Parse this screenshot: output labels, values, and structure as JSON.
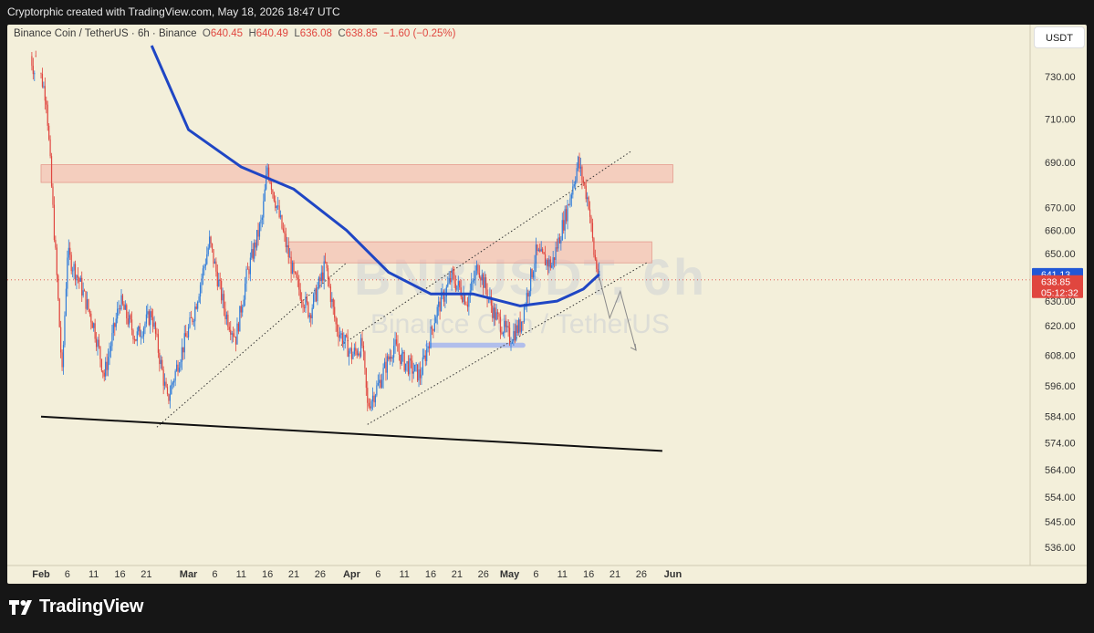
{
  "header": {
    "created_text": "Cryptorphic created with TradingView.com, May 18, 2026 18:47 UTC"
  },
  "legend": {
    "symbol": "Binance Coin / TetherUS · 6h · Binance",
    "o_label": "O",
    "o_value": "640.45",
    "h_label": "H",
    "h_value": "640.49",
    "l_label": "L",
    "l_value": "636.08",
    "c_label": "C",
    "c_value": "638.85",
    "change": "−1.60 (−0.25%)"
  },
  "watermark": {
    "ticker": "BNBUSDT, 6h",
    "name": "Binance Coin / TetherUS"
  },
  "currency_button": "USDT",
  "footer": {
    "brand": "TradingView"
  },
  "colors": {
    "background": "#f3efda",
    "up": "#2f7bd9",
    "down": "#e0463f",
    "ma_line": "#1f46c4",
    "resistance_zone": "#f4b3a8",
    "support_zone": "#aab8ec"
  },
  "chart_data": {
    "type": "candlestick",
    "title": "Binance Coin / TetherUS · 6h · Binance",
    "y_scale": "log",
    "ylim": [
      530,
      745
    ],
    "y_ticks": [
      730,
      710,
      690,
      670,
      660,
      650,
      630,
      620,
      608,
      596,
      584,
      574,
      564,
      554,
      545,
      536
    ],
    "x_ticks": [
      {
        "label": "Feb",
        "date": "2026-02-01",
        "bold": true
      },
      {
        "label": "6",
        "date": "2026-02-06"
      },
      {
        "label": "11",
        "date": "2026-02-11"
      },
      {
        "label": "16",
        "date": "2026-02-16"
      },
      {
        "label": "21",
        "date": "2026-02-21"
      },
      {
        "label": "Mar",
        "date": "2026-03-01",
        "bold": true
      },
      {
        "label": "6",
        "date": "2026-03-06"
      },
      {
        "label": "11",
        "date": "2026-03-11"
      },
      {
        "label": "16",
        "date": "2026-03-16"
      },
      {
        "label": "21",
        "date": "2026-03-21"
      },
      {
        "label": "26",
        "date": "2026-03-26"
      },
      {
        "label": "Apr",
        "date": "2026-04-01",
        "bold": true
      },
      {
        "label": "6",
        "date": "2026-04-06"
      },
      {
        "label": "11",
        "date": "2026-04-11"
      },
      {
        "label": "16",
        "date": "2026-04-16"
      },
      {
        "label": "21",
        "date": "2026-04-21"
      },
      {
        "label": "26",
        "date": "2026-04-26"
      },
      {
        "label": "May",
        "date": "2026-05-01",
        "bold": true
      },
      {
        "label": "6",
        "date": "2026-05-06"
      },
      {
        "label": "11",
        "date": "2026-05-11"
      },
      {
        "label": "16",
        "date": "2026-05-16"
      },
      {
        "label": "21",
        "date": "2026-05-21"
      },
      {
        "label": "26",
        "date": "2026-05-26"
      },
      {
        "label": "Jun",
        "date": "2026-06-01",
        "bold": true
      }
    ],
    "price_path": [
      {
        "date": "2026-01-31",
        "price": 740
      },
      {
        "date": "2026-02-02",
        "price": 720
      },
      {
        "date": "2026-02-04",
        "price": 640
      },
      {
        "date": "2026-02-05",
        "price": 600
      },
      {
        "date": "2026-02-06",
        "price": 650
      },
      {
        "date": "2026-02-08",
        "price": 640
      },
      {
        "date": "2026-02-11",
        "price": 620
      },
      {
        "date": "2026-02-13",
        "price": 600
      },
      {
        "date": "2026-02-16",
        "price": 630
      },
      {
        "date": "2026-02-19",
        "price": 615
      },
      {
        "date": "2026-02-22",
        "price": 625
      },
      {
        "date": "2026-02-25",
        "price": 590
      },
      {
        "date": "2026-02-27",
        "price": 605
      },
      {
        "date": "2026-03-02",
        "price": 625
      },
      {
        "date": "2026-03-05",
        "price": 655
      },
      {
        "date": "2026-03-08",
        "price": 625
      },
      {
        "date": "2026-03-10",
        "price": 615
      },
      {
        "date": "2026-03-12",
        "price": 640
      },
      {
        "date": "2026-03-15",
        "price": 665
      },
      {
        "date": "2026-03-16",
        "price": 688
      },
      {
        "date": "2026-03-18",
        "price": 668
      },
      {
        "date": "2026-03-21",
        "price": 640
      },
      {
        "date": "2026-03-24",
        "price": 625
      },
      {
        "date": "2026-03-27",
        "price": 645
      },
      {
        "date": "2026-03-29",
        "price": 620
      },
      {
        "date": "2026-04-01",
        "price": 608
      },
      {
        "date": "2026-04-03",
        "price": 612
      },
      {
        "date": "2026-04-04",
        "price": 588
      },
      {
        "date": "2026-04-06",
        "price": 596
      },
      {
        "date": "2026-04-09",
        "price": 612
      },
      {
        "date": "2026-04-11",
        "price": 605
      },
      {
        "date": "2026-04-14",
        "price": 600
      },
      {
        "date": "2026-04-17",
        "price": 625
      },
      {
        "date": "2026-04-20",
        "price": 640
      },
      {
        "date": "2026-04-23",
        "price": 630
      },
      {
        "date": "2026-04-25",
        "price": 645
      },
      {
        "date": "2026-04-28",
        "price": 625
      },
      {
        "date": "2026-05-01",
        "price": 615
      },
      {
        "date": "2026-05-03",
        "price": 620
      },
      {
        "date": "2026-05-06",
        "price": 650
      },
      {
        "date": "2026-05-09",
        "price": 645
      },
      {
        "date": "2026-05-12",
        "price": 670
      },
      {
        "date": "2026-05-14",
        "price": 690
      },
      {
        "date": "2026-05-16",
        "price": 672
      },
      {
        "date": "2026-05-17",
        "price": 650
      },
      {
        "date": "2026-05-18",
        "price": 638.85
      }
    ],
    "moving_average": [
      {
        "date": "2026-02-22",
        "price": 745
      },
      {
        "date": "2026-03-01",
        "price": 705
      },
      {
        "date": "2026-03-11",
        "price": 688
      },
      {
        "date": "2026-03-21",
        "price": 678
      },
      {
        "date": "2026-03-31",
        "price": 660
      },
      {
        "date": "2026-04-08",
        "price": 642
      },
      {
        "date": "2026-04-16",
        "price": 633
      },
      {
        "date": "2026-04-24",
        "price": 633
      },
      {
        "date": "2026-05-03",
        "price": 628
      },
      {
        "date": "2026-05-10",
        "price": 630
      },
      {
        "date": "2026-05-15",
        "price": 635
      },
      {
        "date": "2026-05-18",
        "price": 641.13
      }
    ],
    "zones": [
      {
        "kind": "resistance",
        "from": "2026-02-01",
        "to": "2026-06-01",
        "top": 689,
        "bottom": 681
      },
      {
        "kind": "resistance",
        "from": "2026-03-20",
        "to": "2026-05-28",
        "top": 655,
        "bottom": 646
      },
      {
        "kind": "support",
        "from": "2026-04-15",
        "to": "2026-05-04",
        "top": 613,
        "bottom": 611
      }
    ],
    "trendlines": [
      {
        "style": "solid",
        "from": {
          "date": "2026-02-01",
          "price": 584
        },
        "to": {
          "date": "2026-05-30",
          "price": 571
        }
      },
      {
        "style": "dotted",
        "from": {
          "date": "2026-02-23",
          "price": 580
        },
        "to": {
          "date": "2026-03-31",
          "price": 646
        }
      },
      {
        "style": "dotted",
        "from": {
          "date": "2026-04-04",
          "price": 581
        },
        "to": {
          "date": "2026-05-27",
          "price": 646
        }
      },
      {
        "style": "dotted",
        "from": {
          "date": "2026-03-30",
          "price": 612
        },
        "to": {
          "date": "2026-05-24",
          "price": 695
        }
      }
    ],
    "projection": [
      {
        "date": "2026-05-18",
        "price": 640
      },
      {
        "date": "2026-05-20",
        "price": 623
      },
      {
        "date": "2026-05-22",
        "price": 634
      },
      {
        "date": "2026-05-25",
        "price": 610
      }
    ],
    "price_labels": [
      {
        "value": "641.13",
        "kind": "ma"
      },
      {
        "value": "638.85",
        "kind": "last"
      },
      {
        "value": "05:12:32",
        "kind": "countdown"
      }
    ],
    "last_price": 638.85
  }
}
